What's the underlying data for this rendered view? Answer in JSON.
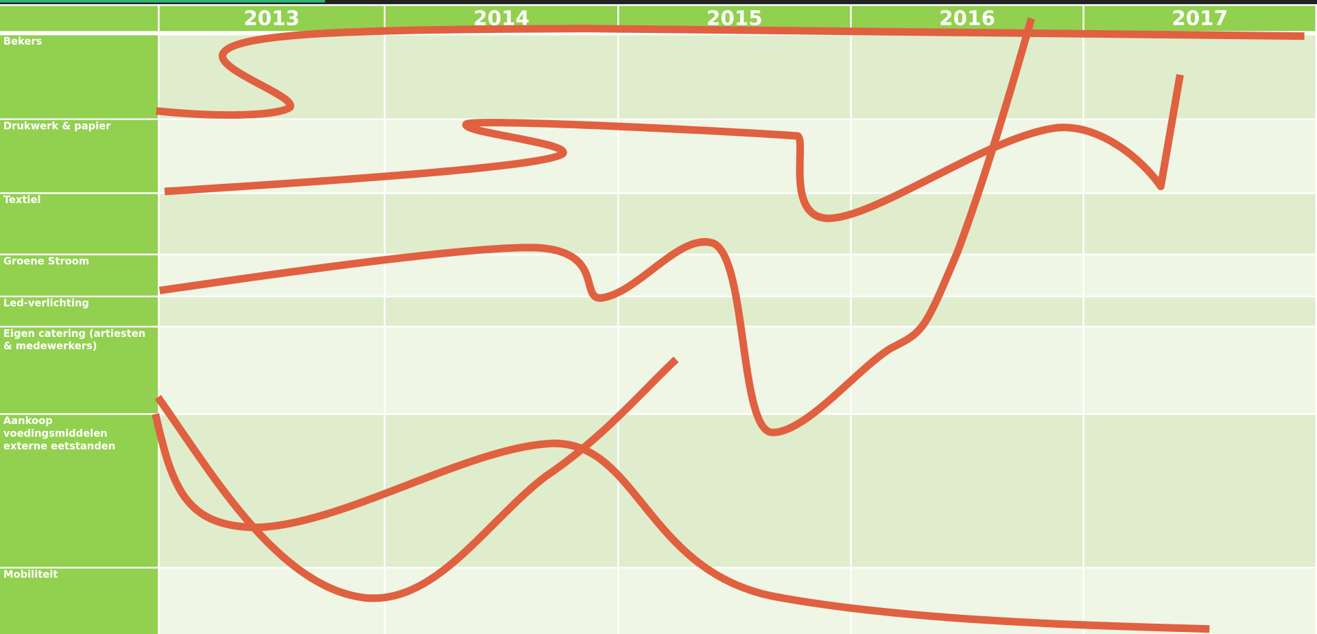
{
  "table": {
    "columns": [
      "2013",
      "2014",
      "2015",
      "2016",
      "2017"
    ],
    "rows": [
      "Bekers",
      "Drukwerk & papier",
      "Textiel",
      "Groene Stroom",
      "Led-verlichting",
      "Eigen catering (artiesten & medewerkers)",
      "Aankoop voedingsmiddelen externe eetstanden",
      "Mobiliteit"
    ]
  }
}
